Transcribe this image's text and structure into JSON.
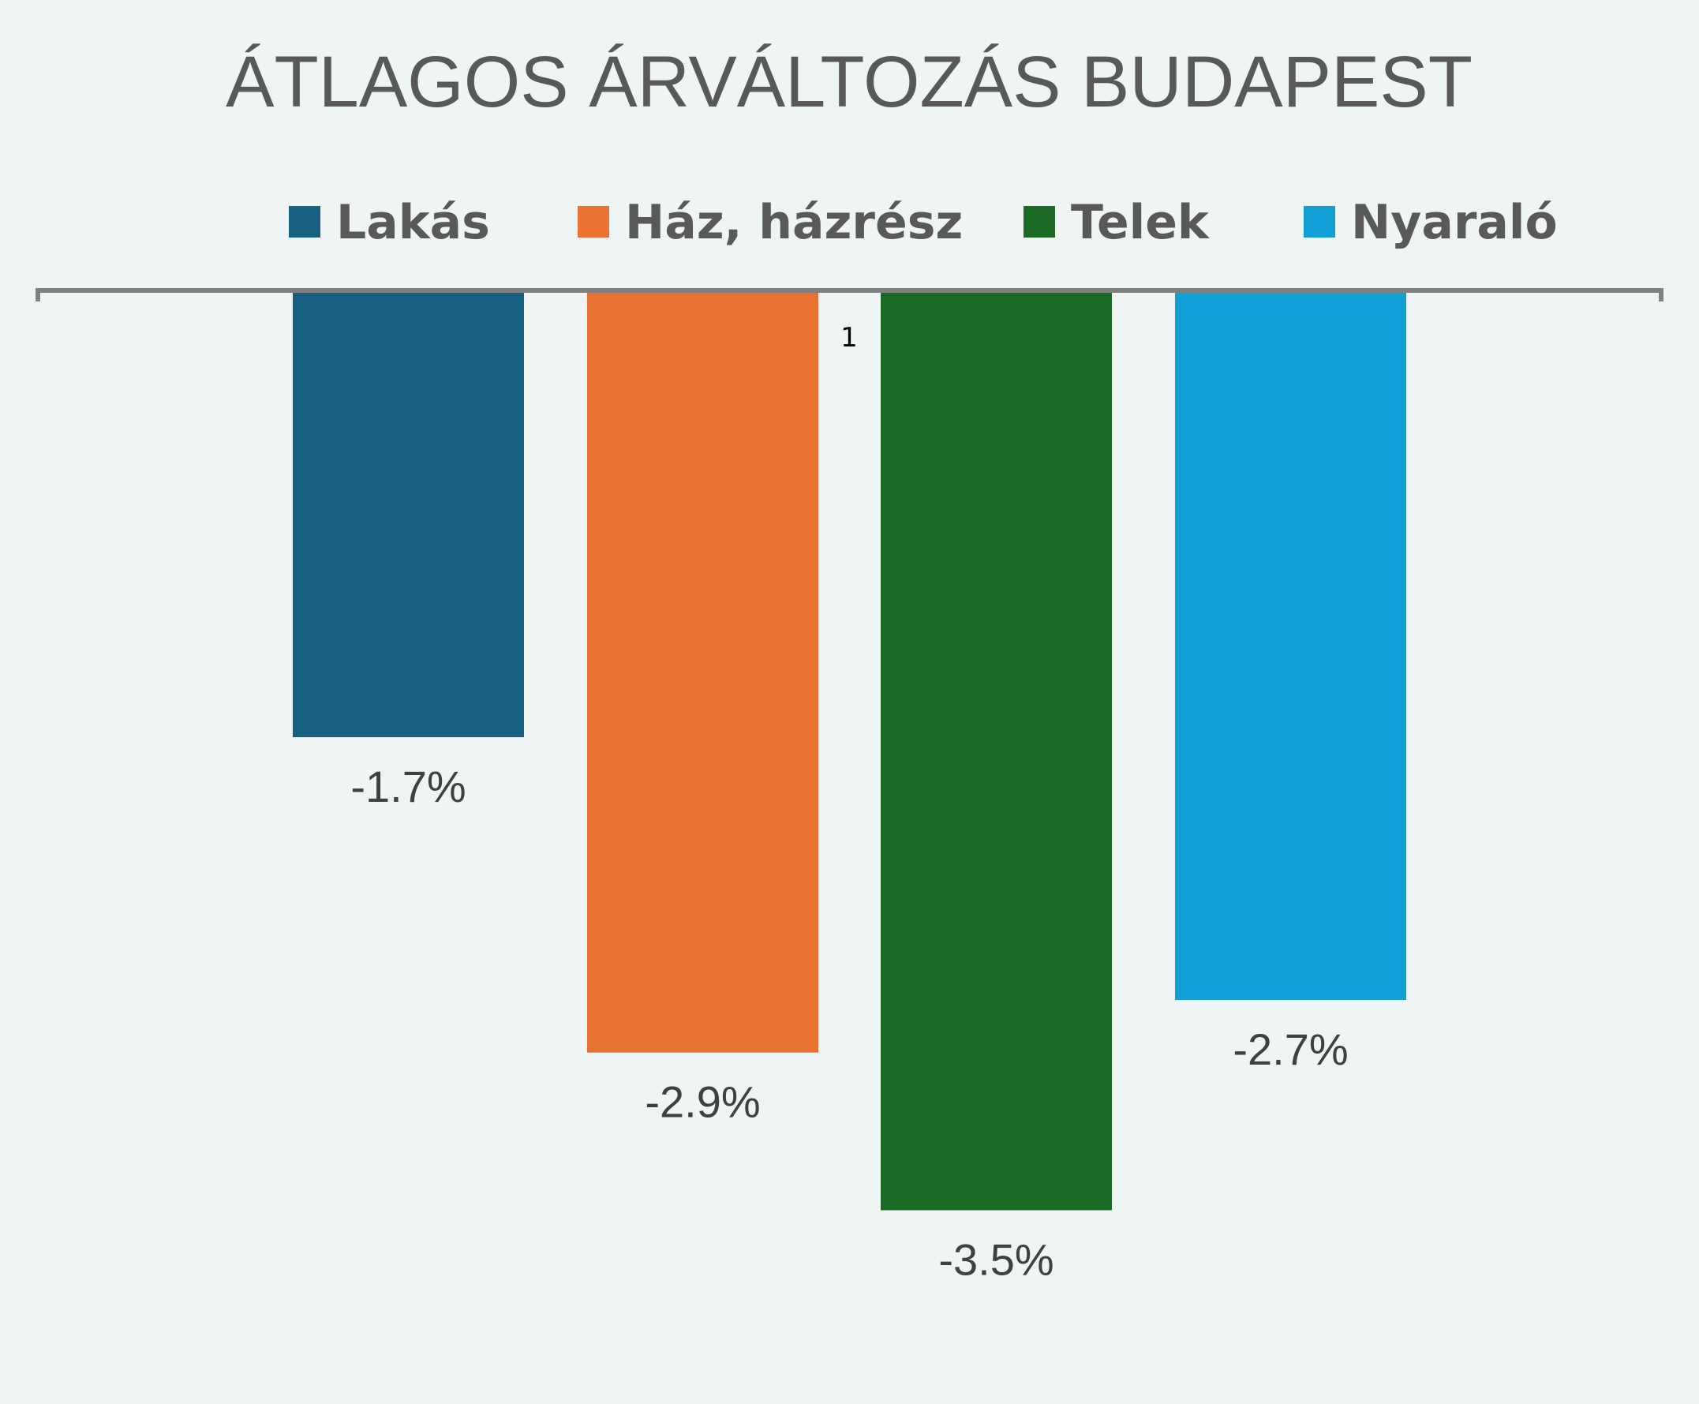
{
  "chart_data": {
    "type": "bar",
    "title": "ÁTLAGOS ÁRVÁLTOZÁS BUDAPEST",
    "categories": [
      "1"
    ],
    "series": [
      {
        "name": "Lakás",
        "values": [
          -1.7
        ],
        "label": "-1.7%",
        "color": "#17607f"
      },
      {
        "name": "Ház, házrész",
        "values": [
          -2.9
        ],
        "label": "-2.9%",
        "color": "#e97132"
      },
      {
        "name": "Telek",
        "values": [
          -3.5
        ],
        "label": "-3.5%",
        "color": "#1b6b26"
      },
      {
        "name": "Nyaraló",
        "values": [
          -2.7
        ],
        "label": "-2.7%",
        "color": "#119fd6"
      }
    ],
    "ylim": [
      -3.5,
      0
    ],
    "legend": "top",
    "grid": false,
    "axis_color": "#808080"
  }
}
